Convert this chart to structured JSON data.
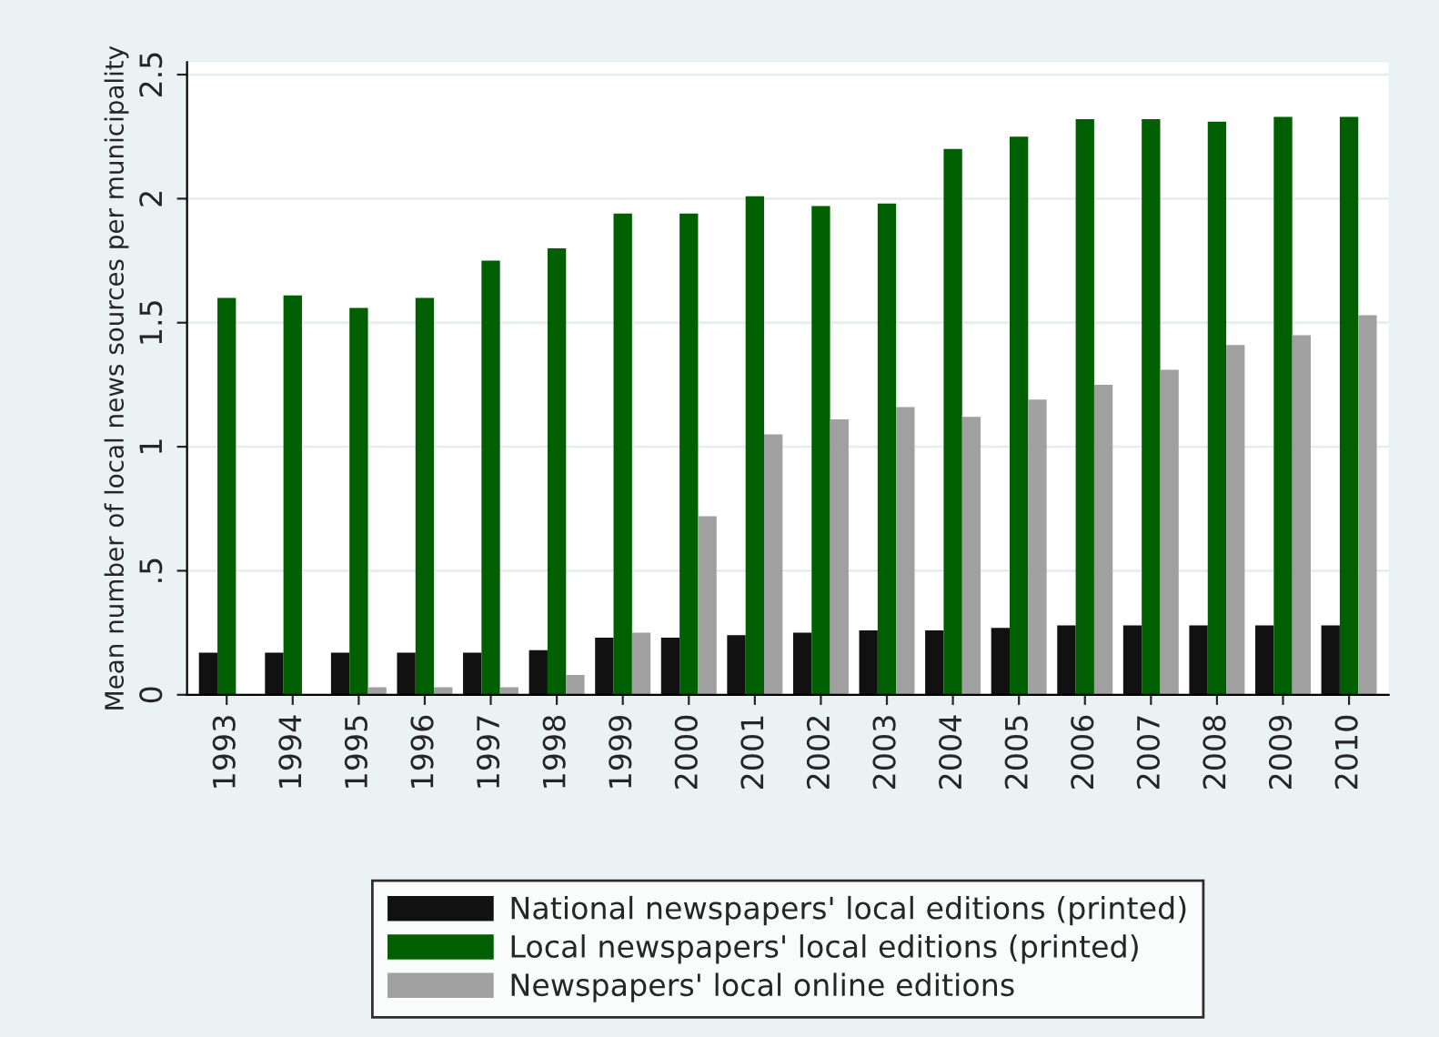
{
  "chart_data": {
    "type": "bar",
    "ylabel": "Mean number of local news sources per municipality",
    "categories": [
      "1993",
      "1994",
      "1995",
      "1996",
      "1997",
      "1998",
      "1999",
      "2000",
      "2001",
      "2002",
      "2003",
      "2004",
      "2005",
      "2006",
      "2007",
      "2008",
      "2009",
      "2010"
    ],
    "series": [
      {
        "name": "National newspapers' local editions (printed)",
        "color": "#111111",
        "values": [
          0.17,
          0.17,
          0.17,
          0.17,
          0.17,
          0.18,
          0.23,
          0.23,
          0.24,
          0.25,
          0.26,
          0.26,
          0.27,
          0.28,
          0.28,
          0.28,
          0.28,
          0.28
        ]
      },
      {
        "name": "Local newspapers' local editions (printed)",
        "color": "#005f00",
        "values": [
          1.6,
          1.61,
          1.56,
          1.6,
          1.75,
          1.8,
          1.94,
          1.94,
          2.01,
          1.97,
          1.98,
          2.2,
          2.25,
          2.32,
          2.32,
          2.31,
          2.33,
          2.33
        ]
      },
      {
        "name": "Newspapers' local online editions",
        "color": "#a0a0a0",
        "values": [
          null,
          null,
          0.03,
          0.03,
          0.03,
          0.08,
          0.25,
          0.72,
          1.05,
          1.11,
          1.16,
          1.12,
          1.19,
          1.25,
          1.31,
          1.41,
          1.45,
          1.53
        ]
      }
    ],
    "ylim": [
      0,
      2.55
    ],
    "yticks": [
      0,
      {
        "value": 0.5,
        "label": ".5"
      },
      1,
      1.5,
      2,
      2.5
    ],
    "grid": "y",
    "legend": "bottom"
  }
}
